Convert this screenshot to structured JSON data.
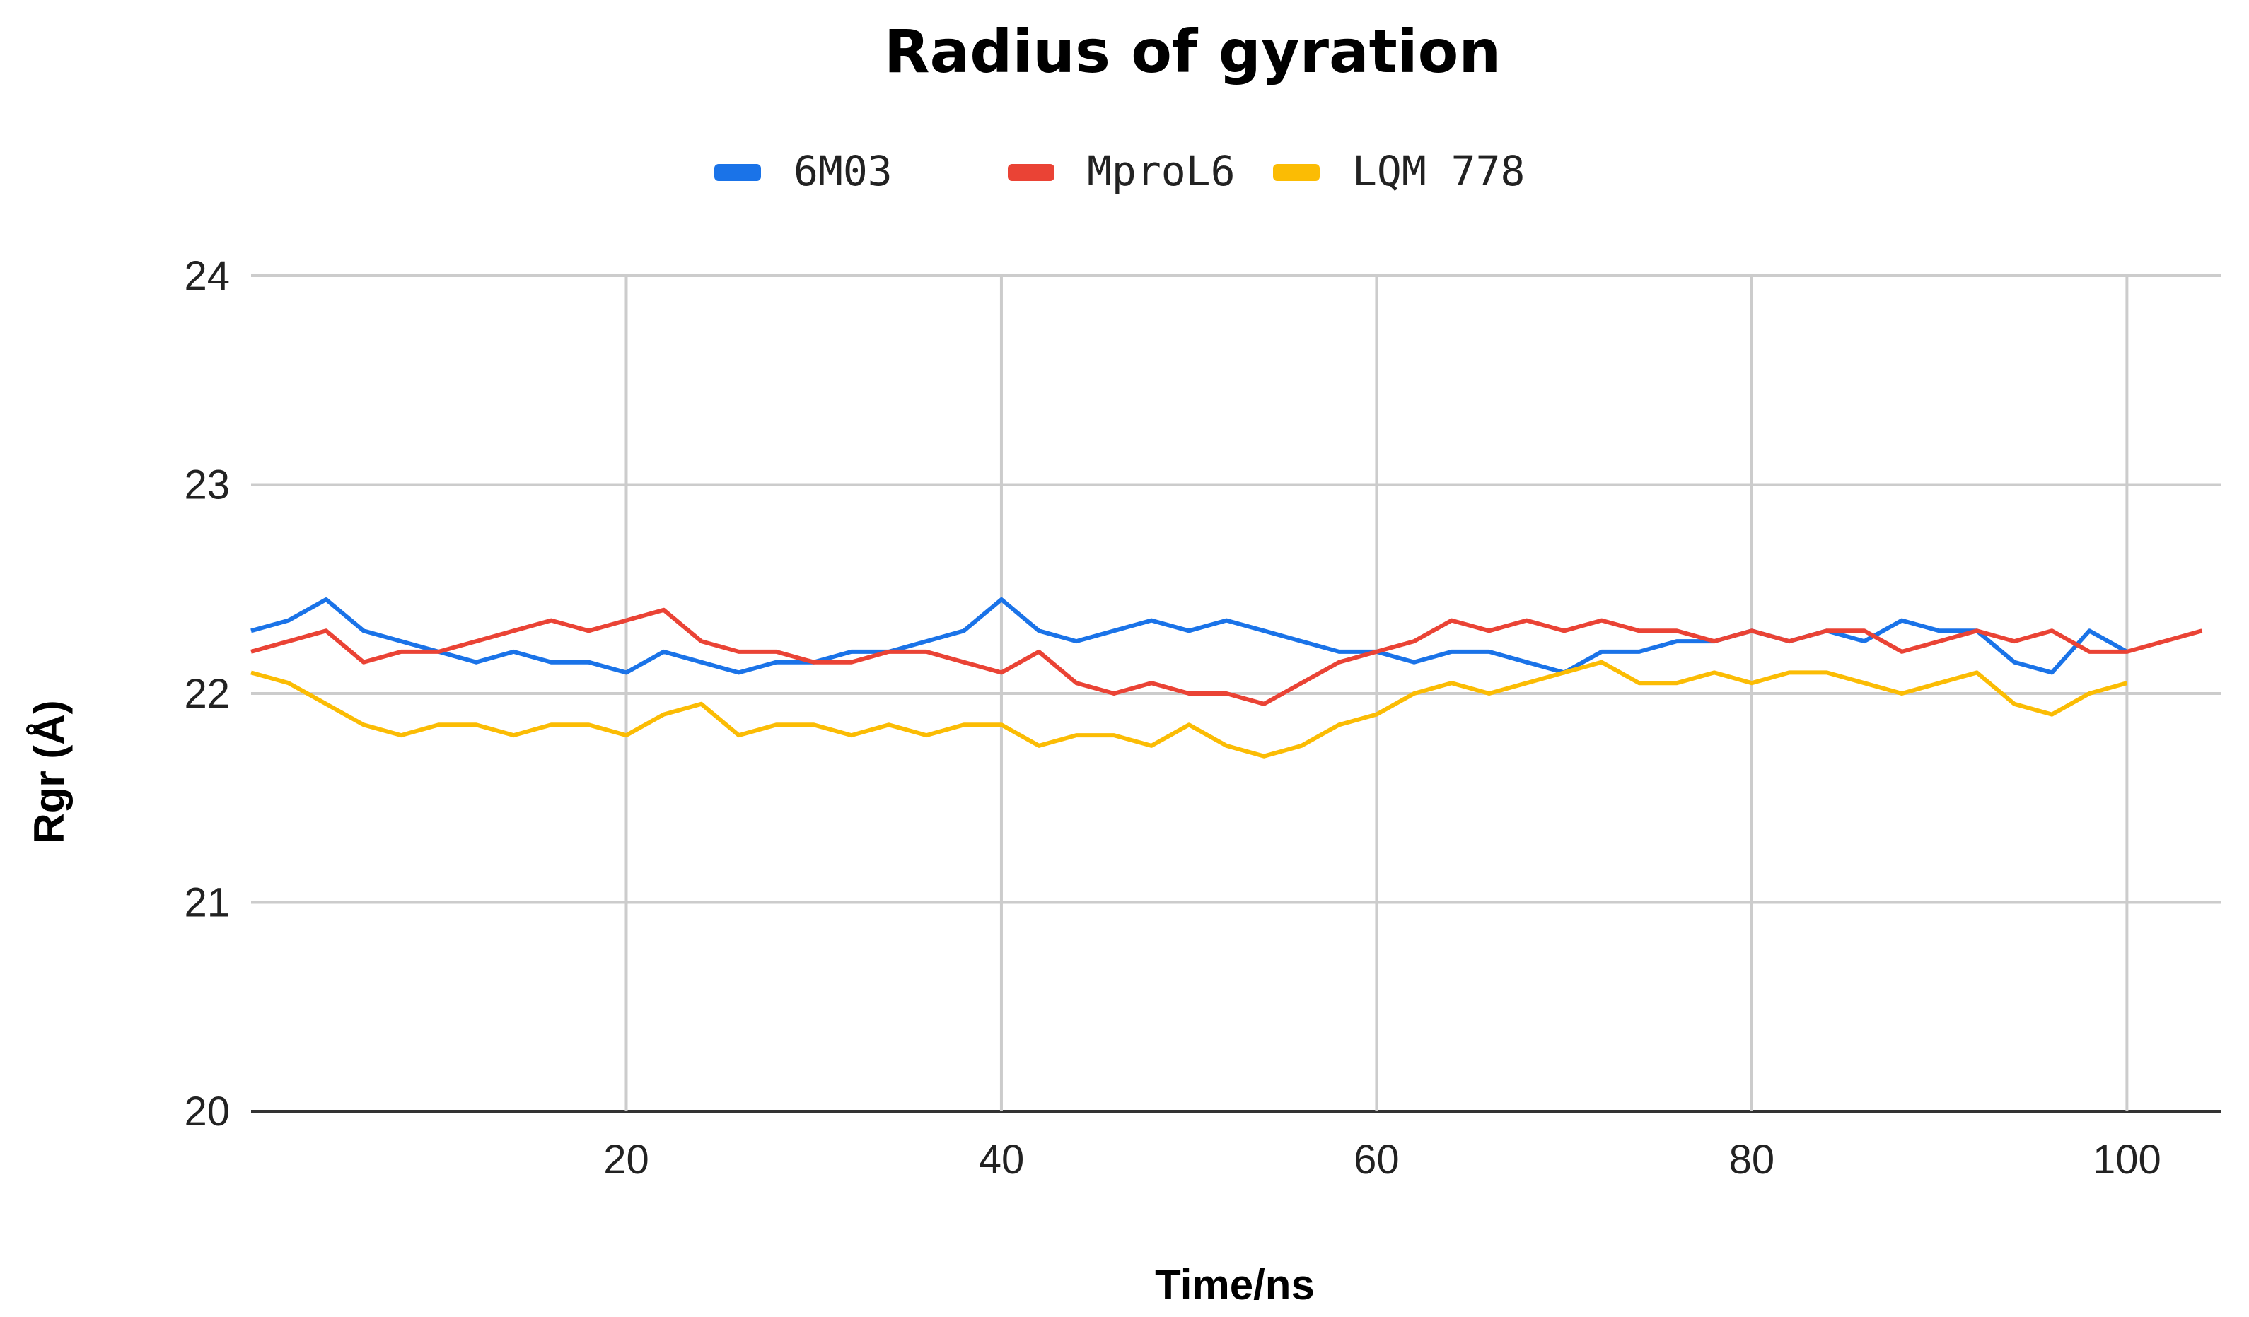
{
  "chart_data": {
    "type": "line",
    "title": "Radius of gyration",
    "xlabel": "Time/ns",
    "ylabel": "Rgr (Å)",
    "xlim": [
      0,
      105
    ],
    "ylim": [
      20,
      24
    ],
    "x_ticks": [
      20,
      40,
      60,
      80,
      100
    ],
    "y_ticks": [
      20,
      21,
      22,
      23,
      24
    ],
    "grid": true,
    "legend_position": "top-center",
    "series": [
      {
        "name": "6M03",
        "color": "#1a73e8",
        "x": [
          0,
          2,
          4,
          6,
          8,
          10,
          12,
          14,
          16,
          18,
          20,
          22,
          24,
          26,
          28,
          30,
          32,
          34,
          36,
          38,
          40,
          42,
          44,
          46,
          48,
          50,
          52,
          54,
          56,
          58,
          60,
          62,
          64,
          66,
          68,
          70,
          72,
          74,
          76,
          78,
          80,
          82,
          84,
          86,
          88,
          90,
          92,
          94,
          96,
          98,
          100
        ],
        "values": [
          22.3,
          22.35,
          22.45,
          22.3,
          22.25,
          22.2,
          22.15,
          22.2,
          22.15,
          22.15,
          22.1,
          22.2,
          22.15,
          22.1,
          22.15,
          22.15,
          22.2,
          22.2,
          22.25,
          22.3,
          22.45,
          22.3,
          22.25,
          22.3,
          22.35,
          22.3,
          22.35,
          22.3,
          22.25,
          22.2,
          22.2,
          22.15,
          22.2,
          22.2,
          22.15,
          22.1,
          22.2,
          22.2,
          22.25,
          22.25,
          22.3,
          22.25,
          22.3,
          22.25,
          22.35,
          22.3,
          22.3,
          22.15,
          22.1,
          22.3,
          22.2
        ]
      },
      {
        "name": "MproL6",
        "color": "#ea4335",
        "x": [
          0,
          2,
          4,
          6,
          8,
          10,
          12,
          14,
          16,
          18,
          20,
          22,
          24,
          26,
          28,
          30,
          32,
          34,
          36,
          38,
          40,
          42,
          44,
          46,
          48,
          50,
          52,
          54,
          56,
          58,
          60,
          62,
          64,
          66,
          68,
          70,
          72,
          74,
          76,
          78,
          80,
          82,
          84,
          86,
          88,
          90,
          92,
          94,
          96,
          98,
          100,
          102,
          104
        ],
        "values": [
          22.2,
          22.25,
          22.3,
          22.15,
          22.2,
          22.2,
          22.25,
          22.3,
          22.35,
          22.3,
          22.35,
          22.4,
          22.25,
          22.2,
          22.2,
          22.15,
          22.15,
          22.2,
          22.2,
          22.15,
          22.1,
          22.2,
          22.05,
          22.0,
          22.05,
          22.0,
          22.0,
          21.95,
          22.05,
          22.15,
          22.2,
          22.25,
          22.35,
          22.3,
          22.35,
          22.3,
          22.35,
          22.3,
          22.3,
          22.25,
          22.3,
          22.25,
          22.3,
          22.3,
          22.2,
          22.25,
          22.3,
          22.25,
          22.3,
          22.2,
          22.2,
          22.25,
          22.3
        ]
      },
      {
        "name": "LQM 778",
        "color": "#fbbc04",
        "x": [
          0,
          2,
          4,
          6,
          8,
          10,
          12,
          14,
          16,
          18,
          20,
          22,
          24,
          26,
          28,
          30,
          32,
          34,
          36,
          38,
          40,
          42,
          44,
          46,
          48,
          50,
          52,
          54,
          56,
          58,
          60,
          62,
          64,
          66,
          68,
          70,
          72,
          74,
          76,
          78,
          80,
          82,
          84,
          86,
          88,
          90,
          92,
          94,
          96,
          98,
          100
        ],
        "values": [
          22.1,
          22.05,
          21.95,
          21.85,
          21.8,
          21.85,
          21.85,
          21.8,
          21.85,
          21.85,
          21.8,
          21.9,
          21.95,
          21.8,
          21.85,
          21.85,
          21.8,
          21.85,
          21.8,
          21.85,
          21.85,
          21.75,
          21.8,
          21.8,
          21.75,
          21.85,
          21.75,
          21.7,
          21.75,
          21.85,
          21.9,
          22.0,
          22.05,
          22.0,
          22.05,
          22.1,
          22.15,
          22.05,
          22.05,
          22.1,
          22.05,
          22.1,
          22.1,
          22.05,
          22.0,
          22.05,
          22.1,
          21.95,
          21.9,
          22.0,
          22.05
        ]
      }
    ]
  }
}
